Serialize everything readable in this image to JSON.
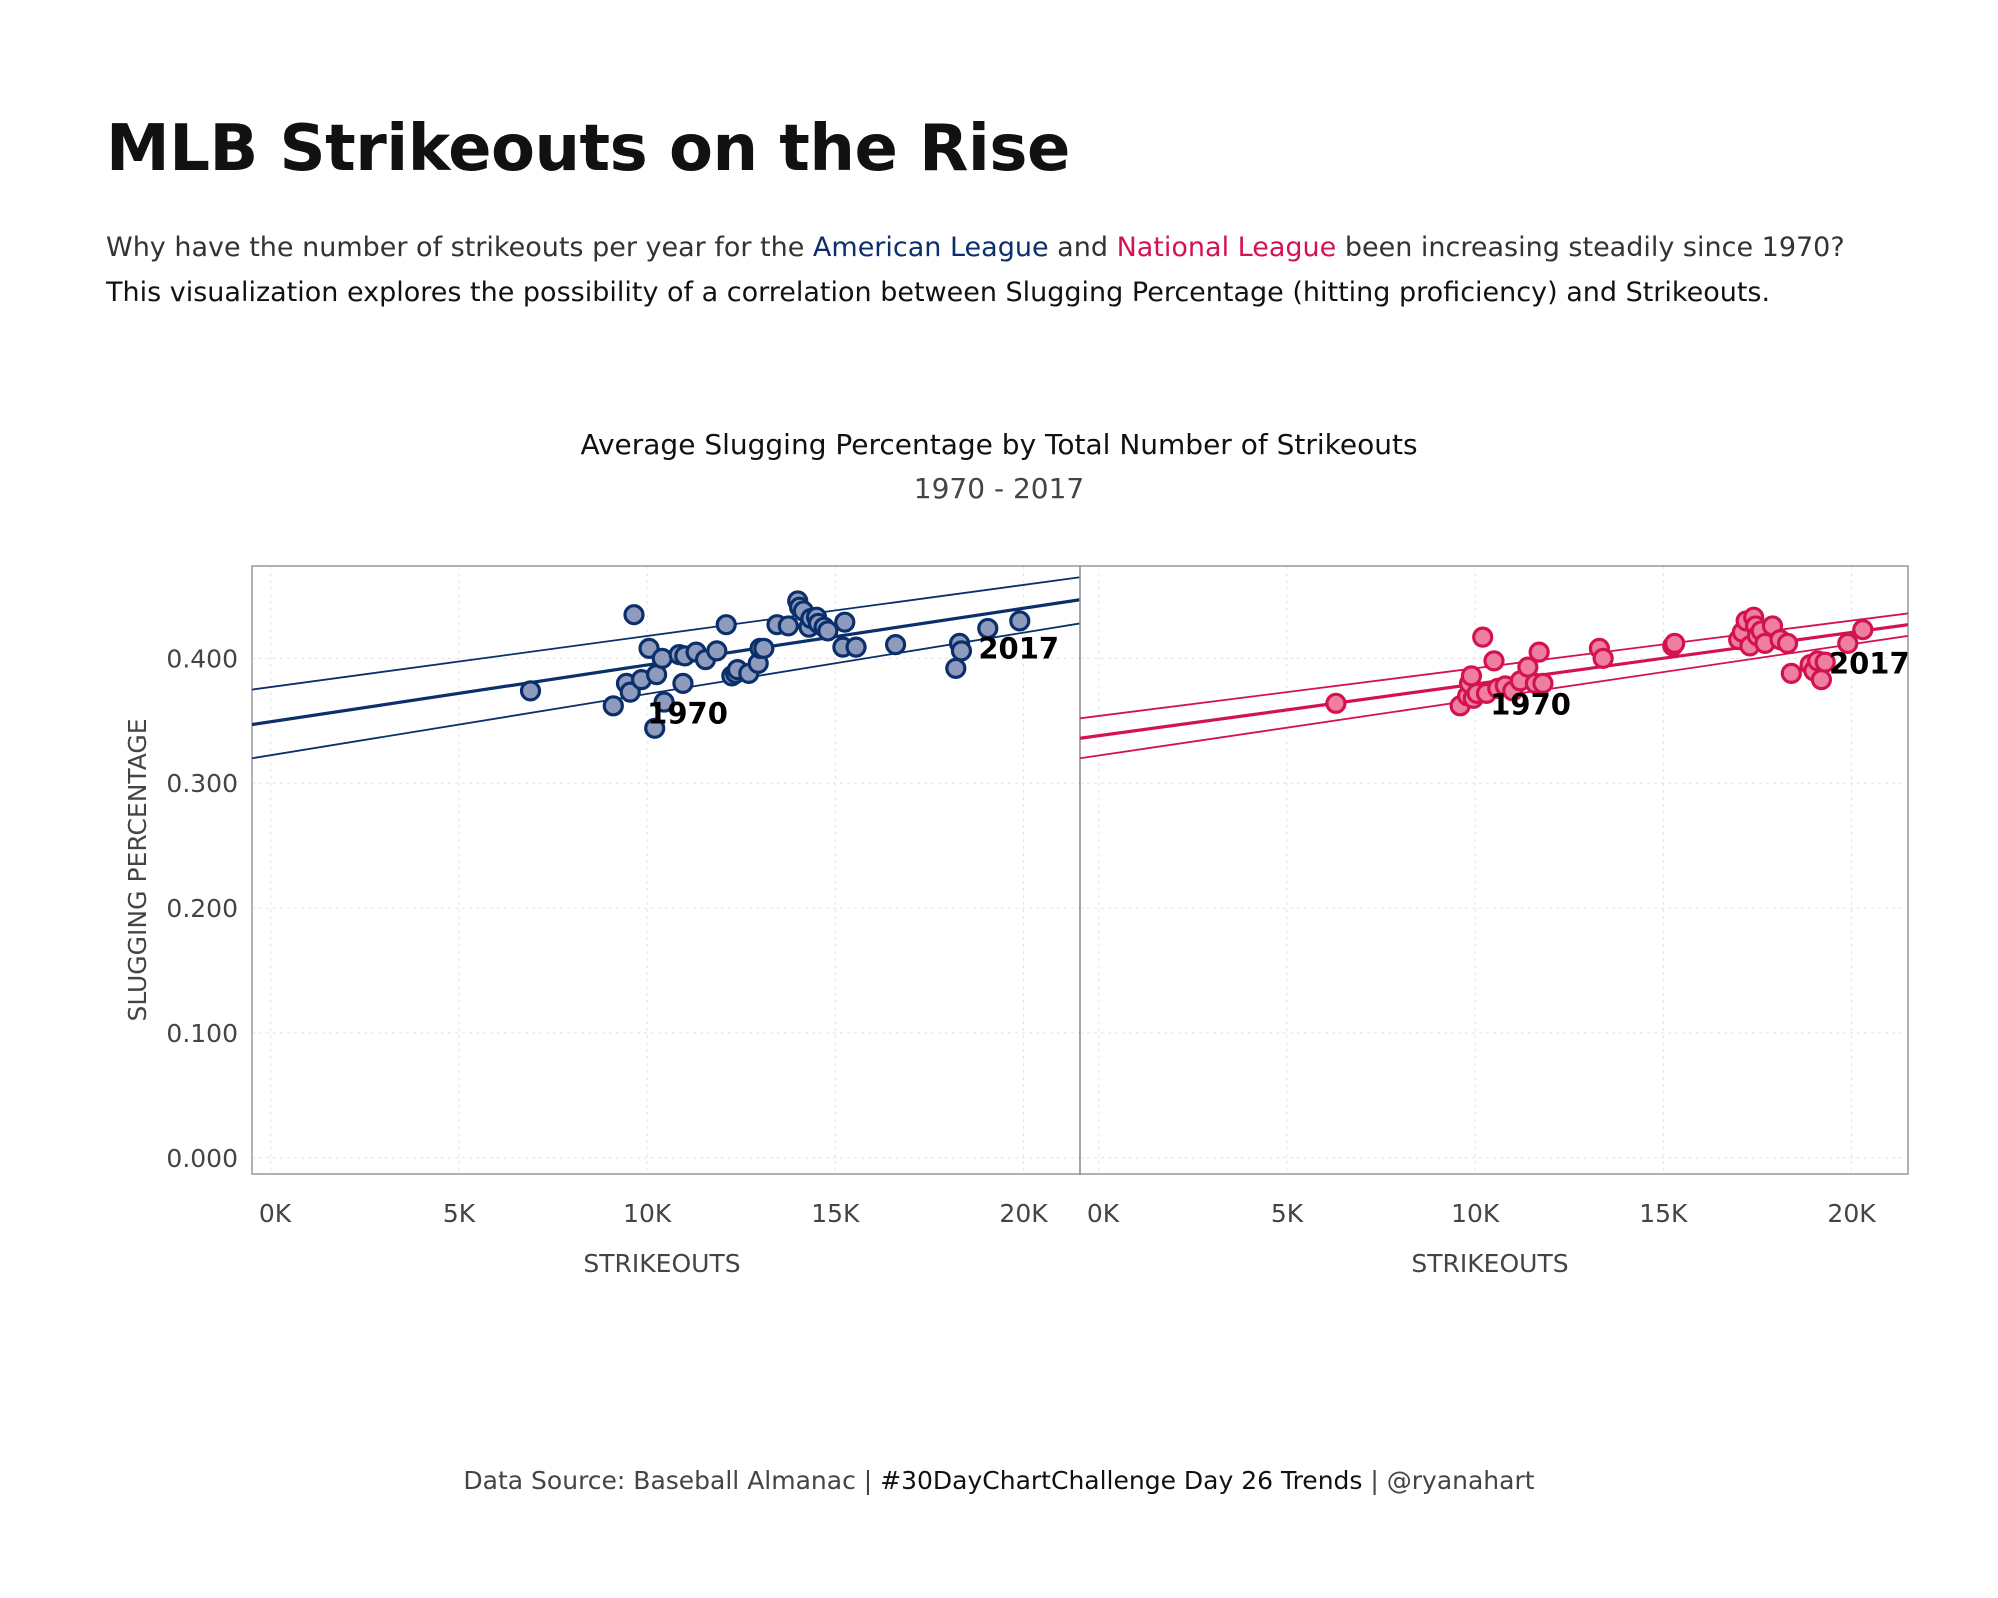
{
  "title": "MLB Strikeouts on the Rise",
  "subtitle": {
    "pre": "Why have the number of strikeouts per year for the ",
    "al": "American League",
    "mid": " and ",
    "nl": "National League",
    "post": " been increasing steadily since 1970?",
    "line2": "This visualization explores the possibility of a correlation between Slugging Percentage (hitting proficiency) and Strikeouts."
  },
  "footer": {
    "source": "Data Source: Baseball Almanac | ",
    "challenge": "#30DayChartChallenge Day 26 Trends",
    "author": " | @ryanahart"
  },
  "colors": {
    "american_league": "#0b2f6b",
    "national_league": "#d4124f"
  },
  "chart_data": {
    "type": "scatter",
    "title": "Average Slugging Percentage by Total Number of Strikeouts",
    "subtitle": "1970 - 2017",
    "xlabel": "STRIKEOUTS",
    "ylabel": "SLUGGING PERCENTAGE",
    "xlim": [
      -500,
      21500
    ],
    "ylim": [
      -0.013,
      0.474
    ],
    "x_ticks": [
      0,
      5000,
      10000,
      15000,
      20000
    ],
    "x_tick_labels": [
      "0K",
      "5K",
      "10K",
      "15K",
      "20K"
    ],
    "y_ticks": [
      0,
      0.1,
      0.2,
      0.3,
      0.4
    ],
    "y_tick_labels": [
      "0.000",
      "0.100",
      "0.200",
      "0.300",
      "0.400"
    ],
    "grid": true,
    "panels": [
      {
        "league": "American League",
        "color": "#0b2f6b",
        "fill": "#8e9bbd",
        "points": [
          [
            6900,
            0.374
          ],
          [
            9100,
            0.362
          ],
          [
            9450,
            0.38
          ],
          [
            9550,
            0.373
          ],
          [
            9650,
            0.435
          ],
          [
            9850,
            0.383
          ],
          [
            10050,
            0.408
          ],
          [
            10200,
            0.344
          ],
          [
            10250,
            0.387
          ],
          [
            10400,
            0.4
          ],
          [
            10450,
            0.365
          ],
          [
            10850,
            0.403
          ],
          [
            10950,
            0.38
          ],
          [
            11000,
            0.402
          ],
          [
            11300,
            0.405
          ],
          [
            11550,
            0.399
          ],
          [
            11850,
            0.406
          ],
          [
            12100,
            0.427
          ],
          [
            12250,
            0.386
          ],
          [
            12350,
            0.388
          ],
          [
            12400,
            0.391
          ],
          [
            12700,
            0.388
          ],
          [
            12950,
            0.396
          ],
          [
            13000,
            0.408
          ],
          [
            13100,
            0.408
          ],
          [
            13450,
            0.427
          ],
          [
            13750,
            0.426
          ],
          [
            14000,
            0.446
          ],
          [
            14050,
            0.441
          ],
          [
            14150,
            0.438
          ],
          [
            14300,
            0.425
          ],
          [
            14350,
            0.432
          ],
          [
            14500,
            0.433
          ],
          [
            14550,
            0.428
          ],
          [
            14700,
            0.425
          ],
          [
            14800,
            0.422
          ],
          [
            15200,
            0.409
          ],
          [
            15250,
            0.429
          ],
          [
            15550,
            0.409
          ],
          [
            16600,
            0.411
          ],
          [
            18200,
            0.392
          ],
          [
            18300,
            0.412
          ],
          [
            18350,
            0.406
          ],
          [
            19050,
            0.424
          ],
          [
            19900,
            0.43
          ]
        ],
        "trend": {
          "start": [
            -500,
            0.347
          ],
          "end": [
            21500,
            0.447
          ]
        },
        "ci_upper": {
          "start": [
            -500,
            0.375
          ],
          "end": [
            21500,
            0.465
          ]
        },
        "ci_lower": {
          "start": [
            -500,
            0.32
          ],
          "end": [
            21500,
            0.428
          ]
        },
        "labels": [
          {
            "text": "1970",
            "x": 10000,
            "y": 0.348
          },
          {
            "text": "2017",
            "x": 18800,
            "y": 0.4
          }
        ]
      },
      {
        "league": "National League",
        "color": "#d4124f",
        "fill": "#ef7fa1",
        "points": [
          [
            6300,
            0.364
          ],
          [
            9600,
            0.362
          ],
          [
            9800,
            0.37
          ],
          [
            9850,
            0.38
          ],
          [
            9900,
            0.386
          ],
          [
            9950,
            0.368
          ],
          [
            10050,
            0.372
          ],
          [
            10200,
            0.417
          ],
          [
            10300,
            0.372
          ],
          [
            10500,
            0.398
          ],
          [
            10600,
            0.376
          ],
          [
            10800,
            0.378
          ],
          [
            11000,
            0.374
          ],
          [
            11200,
            0.382
          ],
          [
            11400,
            0.393
          ],
          [
            11600,
            0.38
          ],
          [
            11700,
            0.405
          ],
          [
            11800,
            0.38
          ],
          [
            13300,
            0.408
          ],
          [
            13400,
            0.4
          ],
          [
            15250,
            0.41
          ],
          [
            15300,
            0.412
          ],
          [
            17000,
            0.415
          ],
          [
            17100,
            0.421
          ],
          [
            17200,
            0.43
          ],
          [
            17300,
            0.41
          ],
          [
            17400,
            0.433
          ],
          [
            17450,
            0.426
          ],
          [
            17500,
            0.418
          ],
          [
            17600,
            0.422
          ],
          [
            17700,
            0.412
          ],
          [
            17900,
            0.426
          ],
          [
            18100,
            0.415
          ],
          [
            18300,
            0.412
          ],
          [
            18400,
            0.388
          ],
          [
            18900,
            0.395
          ],
          [
            19000,
            0.39
          ],
          [
            19100,
            0.398
          ],
          [
            19200,
            0.383
          ],
          [
            19300,
            0.397
          ],
          [
            19900,
            0.412
          ],
          [
            20300,
            0.423
          ]
        ],
        "trend": {
          "start": [
            -500,
            0.336
          ],
          "end": [
            21500,
            0.427
          ]
        },
        "ci_upper": {
          "start": [
            -500,
            0.352
          ],
          "end": [
            21500,
            0.436
          ]
        },
        "ci_lower": {
          "start": [
            -500,
            0.32
          ],
          "end": [
            21500,
            0.418
          ]
        },
        "labels": [
          {
            "text": "1970",
            "x": 10400,
            "y": 0.355
          },
          {
            "text": "2017",
            "x": 19400,
            "y": 0.388
          }
        ]
      }
    ]
  }
}
